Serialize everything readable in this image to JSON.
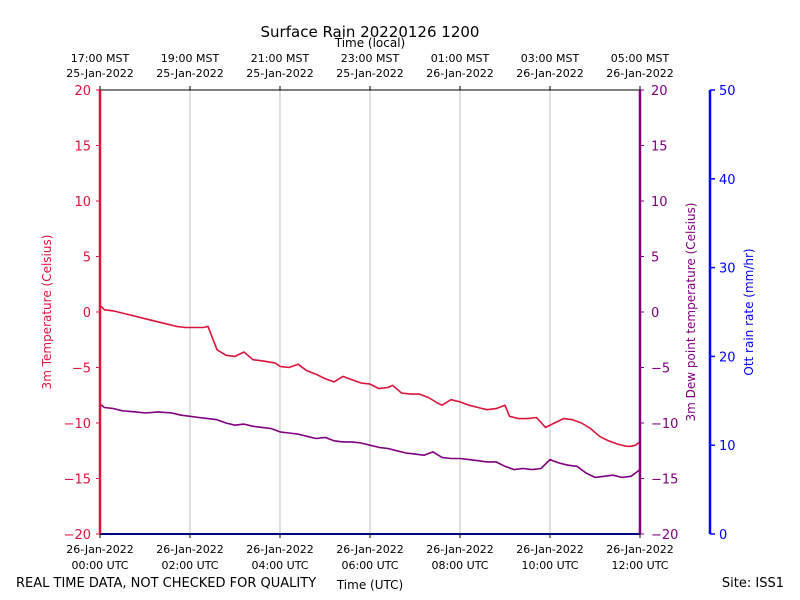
{
  "chart_data": {
    "type": "line",
    "title": "Surface Rain 20220126 1200",
    "xlabel_bottom": "Time (UTC)",
    "xlabel_top": "Time (local)",
    "ylabel_left": "3m Temperature (Celsius)",
    "ylabel_right": "3m Dew point temperature (Celsius)",
    "ylabel_far_right": "Ott rain rate (mm/hr)",
    "x_range_hours_utc": [
      0,
      12
    ],
    "ylim_left": [
      -20,
      20
    ],
    "ylim_right": [
      -20,
      20
    ],
    "ylim_far_right": [
      0,
      50
    ],
    "yticks_left": [
      "20",
      "15",
      "10",
      "5",
      "0",
      "−5",
      "−10",
      "−15",
      "−20"
    ],
    "yticks_right": [
      "20",
      "15",
      "10",
      "5",
      "0",
      "−5",
      "−10",
      "−15",
      "−20"
    ],
    "yticks_far_right": [
      "50",
      "40",
      "30",
      "20",
      "10",
      "0"
    ],
    "xticks_bottom": [
      {
        "date": "26-Jan-2022",
        "time": "00:00 UTC"
      },
      {
        "date": "26-Jan-2022",
        "time": "02:00 UTC"
      },
      {
        "date": "26-Jan-2022",
        "time": "04:00 UTC"
      },
      {
        "date": "26-Jan-2022",
        "time": "06:00 UTC"
      },
      {
        "date": "26-Jan-2022",
        "time": "08:00 UTC"
      },
      {
        "date": "26-Jan-2022",
        "time": "10:00 UTC"
      },
      {
        "date": "26-Jan-2022",
        "time": "12:00 UTC"
      }
    ],
    "xticks_top": [
      {
        "time": "17:00 MST",
        "date": "25-Jan-2022"
      },
      {
        "time": "19:00 MST",
        "date": "25-Jan-2022"
      },
      {
        "time": "21:00 MST",
        "date": "25-Jan-2022"
      },
      {
        "time": "23:00 MST",
        "date": "25-Jan-2022"
      },
      {
        "time": "01:00 MST",
        "date": "26-Jan-2022"
      },
      {
        "time": "03:00 MST",
        "date": "26-Jan-2022"
      },
      {
        "time": "05:00 MST",
        "date": "26-Jan-2022"
      }
    ],
    "grid": "vertical",
    "colors": {
      "temperature": "#dc143c",
      "dewpoint": "#800080",
      "rain": "#0000ff",
      "grid": "#b0b0b0"
    },
    "series": [
      {
        "key": "temperature",
        "hours_utc": [
          0,
          0.1,
          0.3,
          0.5,
          1.0,
          1.5,
          1.7,
          1.9,
          2.1,
          2.3,
          2.4,
          2.6,
          2.8,
          3.0,
          3.2,
          3.4,
          3.6,
          3.9,
          4.0,
          4.2,
          4.4,
          4.6,
          4.8,
          5.0,
          5.2,
          5.4,
          5.6,
          5.8,
          6.0,
          6.2,
          6.4,
          6.5,
          6.7,
          6.9,
          7.1,
          7.3,
          7.5,
          7.6,
          7.8,
          8.0,
          8.2,
          8.4,
          8.6,
          8.8,
          9.0,
          9.1,
          9.3,
          9.5,
          9.7,
          9.9,
          10.1,
          10.3,
          10.5,
          10.7,
          10.9,
          11.1,
          11.3,
          11.5,
          11.7,
          11.8,
          11.9,
          12.0
        ],
        "values": [
          0.6,
          0.2,
          0.1,
          -0.1,
          -0.6,
          -1.1,
          -1.3,
          -1.4,
          -1.4,
          -1.4,
          -1.3,
          -3.4,
          -3.9,
          -4.0,
          -3.6,
          -4.3,
          -4.4,
          -4.6,
          -4.9,
          -5.0,
          -4.7,
          -5.3,
          -5.6,
          -6.0,
          -6.3,
          -5.8,
          -6.1,
          -6.4,
          -6.5,
          -6.9,
          -6.8,
          -6.6,
          -7.3,
          -7.4,
          -7.4,
          -7.7,
          -8.2,
          -8.4,
          -7.9,
          -8.1,
          -8.4,
          -8.6,
          -8.8,
          -8.7,
          -8.4,
          -9.4,
          -9.6,
          -9.6,
          -9.5,
          -10.4,
          -10.0,
          -9.6,
          -9.7,
          -10.0,
          -10.5,
          -11.2,
          -11.6,
          -11.9,
          -12.1,
          -12.1,
          -12.0,
          -11.7
        ]
      },
      {
        "key": "dewpoint",
        "hours_utc": [
          0,
          0.1,
          0.3,
          0.5,
          0.8,
          1.0,
          1.3,
          1.6,
          1.8,
          2.0,
          2.2,
          2.4,
          2.6,
          2.8,
          3.0,
          3.2,
          3.4,
          3.6,
          3.8,
          4.0,
          4.2,
          4.4,
          4.6,
          4.8,
          5.0,
          5.2,
          5.4,
          5.6,
          5.8,
          6.0,
          6.2,
          6.4,
          6.6,
          6.8,
          7.0,
          7.2,
          7.4,
          7.6,
          7.8,
          8.0,
          8.2,
          8.4,
          8.6,
          8.8,
          9.0,
          9.2,
          9.4,
          9.6,
          9.8,
          10.0,
          10.2,
          10.4,
          10.6,
          10.8,
          11.0,
          11.2,
          11.4,
          11.6,
          11.8,
          12.0
        ],
        "values": [
          -8.3,
          -8.6,
          -8.7,
          -8.9,
          -9.0,
          -9.1,
          -9.0,
          -9.1,
          -9.3,
          -9.4,
          -9.5,
          -9.6,
          -9.7,
          -10.0,
          -10.2,
          -10.1,
          -10.3,
          -10.4,
          -10.5,
          -10.8,
          -10.9,
          -11.0,
          -11.2,
          -11.4,
          -11.3,
          -11.6,
          -11.7,
          -11.7,
          -11.8,
          -12.0,
          -12.2,
          -12.3,
          -12.5,
          -12.7,
          -12.8,
          -12.9,
          -12.6,
          -13.1,
          -13.2,
          -13.2,
          -13.3,
          -13.4,
          -13.5,
          -13.5,
          -13.9,
          -14.2,
          -14.1,
          -14.2,
          -14.1,
          -13.3,
          -13.6,
          -13.8,
          -13.9,
          -14.5,
          -14.9,
          -14.8,
          -14.7,
          -14.9,
          -14.8,
          -14.2
        ]
      },
      {
        "key": "rain",
        "hours_utc": [
          0,
          12
        ],
        "values": [
          0,
          0
        ]
      }
    ]
  },
  "footer": {
    "left": "REAL TIME DATA, NOT CHECKED FOR QUALITY",
    "right": "Site: ISS1"
  }
}
